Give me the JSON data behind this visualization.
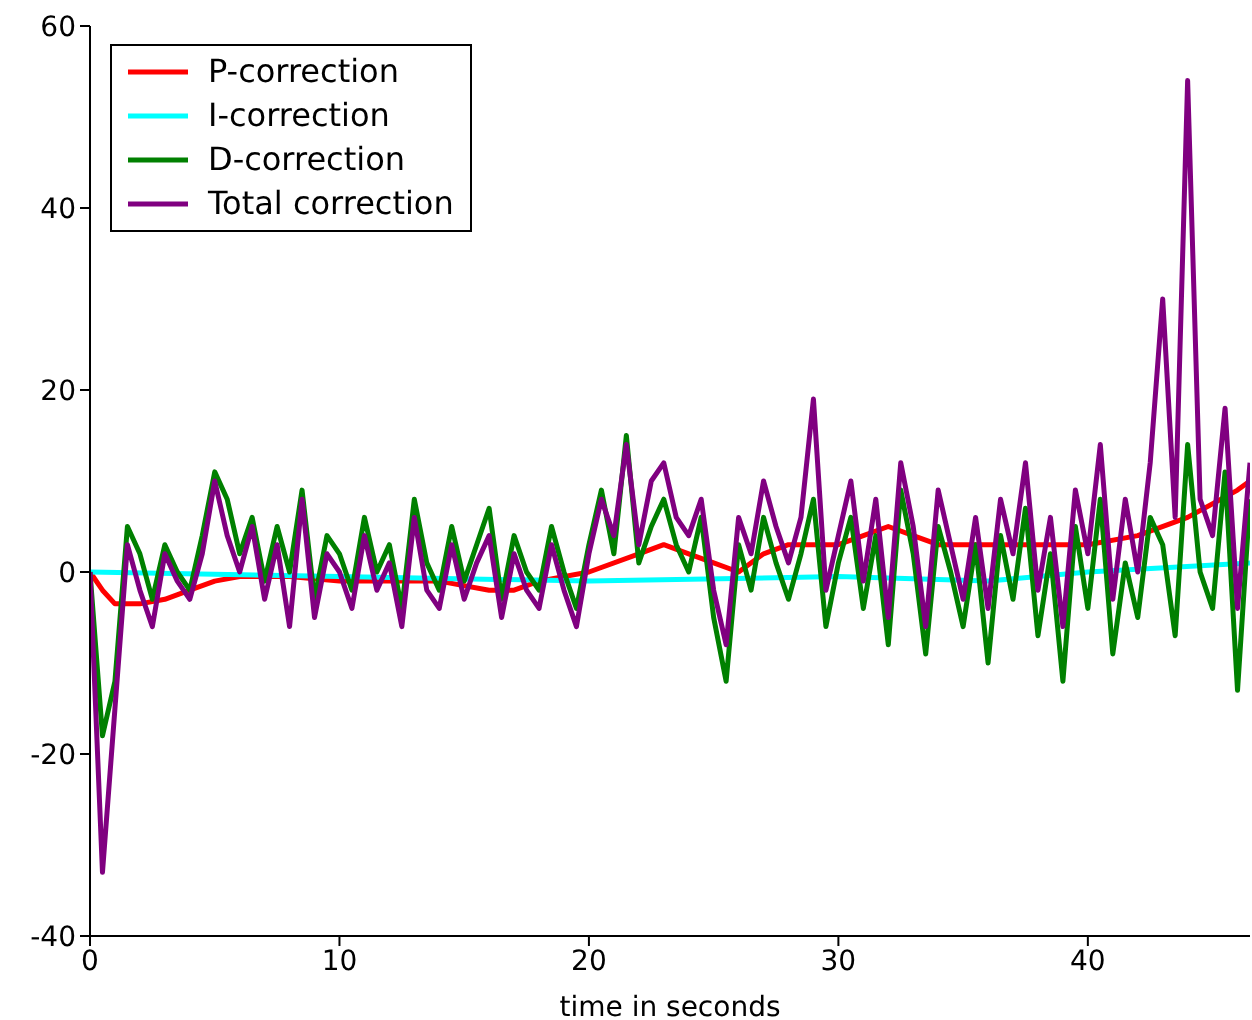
{
  "chart_data": {
    "type": "line",
    "xlabel": "time in seconds",
    "xlim": [
      0,
      46.5
    ],
    "xticks": [
      0,
      10,
      20,
      30,
      40
    ],
    "ylim": [
      -40,
      60
    ],
    "yticks": [
      -40,
      -20,
      0,
      20,
      40,
      60
    ],
    "legend": "top left",
    "marker": "none",
    "line_style": "solid",
    "series": [
      {
        "name": "P-correction",
        "color": "#ff0000",
        "x": [
          0,
          0.5,
          1,
          2,
          3,
          4,
          5,
          6,
          8,
          10,
          12,
          14,
          16,
          17,
          18,
          20,
          22,
          23,
          24,
          25,
          26,
          27,
          28,
          30,
          31,
          32,
          33,
          34,
          36,
          38,
          40,
          42,
          44,
          46,
          46.5
        ],
        "values": [
          0,
          -2,
          -3.5,
          -3.5,
          -3,
          -2,
          -1,
          -0.5,
          -0.5,
          -1,
          -1,
          -1,
          -2,
          -2,
          -1,
          0,
          2,
          3,
          2,
          1,
          0,
          2,
          3,
          3,
          4,
          5,
          4,
          3,
          3,
          3,
          3,
          4,
          6,
          9,
          10
        ]
      },
      {
        "name": "I-correction",
        "color": "#00ffff",
        "x": [
          0,
          10,
          20,
          30,
          36,
          40,
          46.5
        ],
        "values": [
          0,
          -0.5,
          -1,
          -0.5,
          -1,
          0,
          1
        ]
      },
      {
        "name": "D-correction",
        "color": "#008000",
        "x": [
          0,
          0.5,
          1,
          1.5,
          2,
          2.5,
          3,
          3.5,
          4,
          4.5,
          5,
          5.5,
          6,
          6.5,
          7,
          7.5,
          8,
          8.5,
          9,
          9.5,
          10,
          10.5,
          11,
          11.5,
          12,
          12.5,
          13,
          13.5,
          14,
          14.5,
          15,
          15.5,
          16,
          16.5,
          17,
          17.5,
          18,
          18.5,
          19,
          19.5,
          20,
          20.5,
          21,
          21.5,
          22,
          22.5,
          23,
          23.5,
          24,
          24.5,
          25,
          25.5,
          26,
          26.5,
          27,
          27.5,
          28,
          28.5,
          29,
          29.5,
          30,
          30.5,
          31,
          31.5,
          32,
          32.5,
          33,
          33.5,
          34,
          34.5,
          35,
          35.5,
          36,
          36.5,
          37,
          37.5,
          38,
          38.5,
          39,
          39.5,
          40,
          40.5,
          41,
          41.5,
          42,
          42.5,
          43,
          43.5,
          44,
          44.5,
          45,
          45.5,
          46,
          46.5
        ],
        "values": [
          0,
          -18,
          -12,
          5,
          2,
          -3,
          3,
          0,
          -2,
          4,
          11,
          8,
          2,
          6,
          -1,
          5,
          0,
          9,
          -3,
          4,
          2,
          -2,
          6,
          0,
          3,
          -4,
          8,
          1,
          -2,
          5,
          -1,
          3,
          7,
          -3,
          4,
          0,
          -2,
          5,
          0,
          -4,
          3,
          9,
          2,
          15,
          1,
          5,
          8,
          3,
          0,
          6,
          -5,
          -12,
          3,
          -2,
          6,
          1,
          -3,
          2,
          8,
          -6,
          1,
          6,
          -4,
          4,
          -8,
          9,
          2,
          -9,
          5,
          0,
          -6,
          3,
          -10,
          4,
          -3,
          7,
          -7,
          2,
          -12,
          5,
          -4,
          8,
          -9,
          1,
          -5,
          6,
          3,
          -7,
          14,
          0,
          -4,
          11,
          -13,
          8
        ]
      },
      {
        "name": "Total correction",
        "color": "#800080",
        "x": [
          0,
          0.5,
          1,
          1.5,
          2,
          2.5,
          3,
          3.5,
          4,
          4.5,
          5,
          5.5,
          6,
          6.5,
          7,
          7.5,
          8,
          8.5,
          9,
          9.5,
          10,
          10.5,
          11,
          11.5,
          12,
          12.5,
          13,
          13.5,
          14,
          14.5,
          15,
          15.5,
          16,
          16.5,
          17,
          17.5,
          18,
          18.5,
          19,
          19.5,
          20,
          20.5,
          21,
          21.5,
          22,
          22.5,
          23,
          23.5,
          24,
          24.5,
          25,
          25.5,
          26,
          26.5,
          27,
          27.5,
          28,
          28.5,
          29,
          29.5,
          30,
          30.5,
          31,
          31.5,
          32,
          32.5,
          33,
          33.5,
          34,
          34.5,
          35,
          35.5,
          36,
          36.5,
          37,
          37.5,
          38,
          38.5,
          39,
          39.5,
          40,
          40.5,
          41,
          41.5,
          42,
          42.5,
          43,
          43.5,
          44,
          44.5,
          45,
          45.5,
          46,
          46.5
        ],
        "values": [
          0,
          -33,
          -15,
          3,
          -2,
          -6,
          2,
          -1,
          -3,
          2,
          10,
          4,
          0,
          5,
          -3,
          3,
          -6,
          8,
          -5,
          2,
          0,
          -4,
          4,
          -2,
          1,
          -6,
          6,
          -2,
          -4,
          3,
          -3,
          1,
          4,
          -5,
          2,
          -2,
          -4,
          3,
          -2,
          -6,
          2,
          8,
          4,
          14,
          3,
          10,
          12,
          6,
          4,
          8,
          -2,
          -8,
          6,
          2,
          10,
          5,
          1,
          6,
          19,
          -2,
          4,
          10,
          -1,
          8,
          -5,
          12,
          5,
          -6,
          9,
          3,
          -3,
          6,
          -4,
          8,
          2,
          12,
          -2,
          6,
          -6,
          9,
          2,
          14,
          -3,
          8,
          0,
          12,
          30,
          6,
          54,
          8,
          4,
          18,
          -4,
          12
        ]
      }
    ]
  }
}
